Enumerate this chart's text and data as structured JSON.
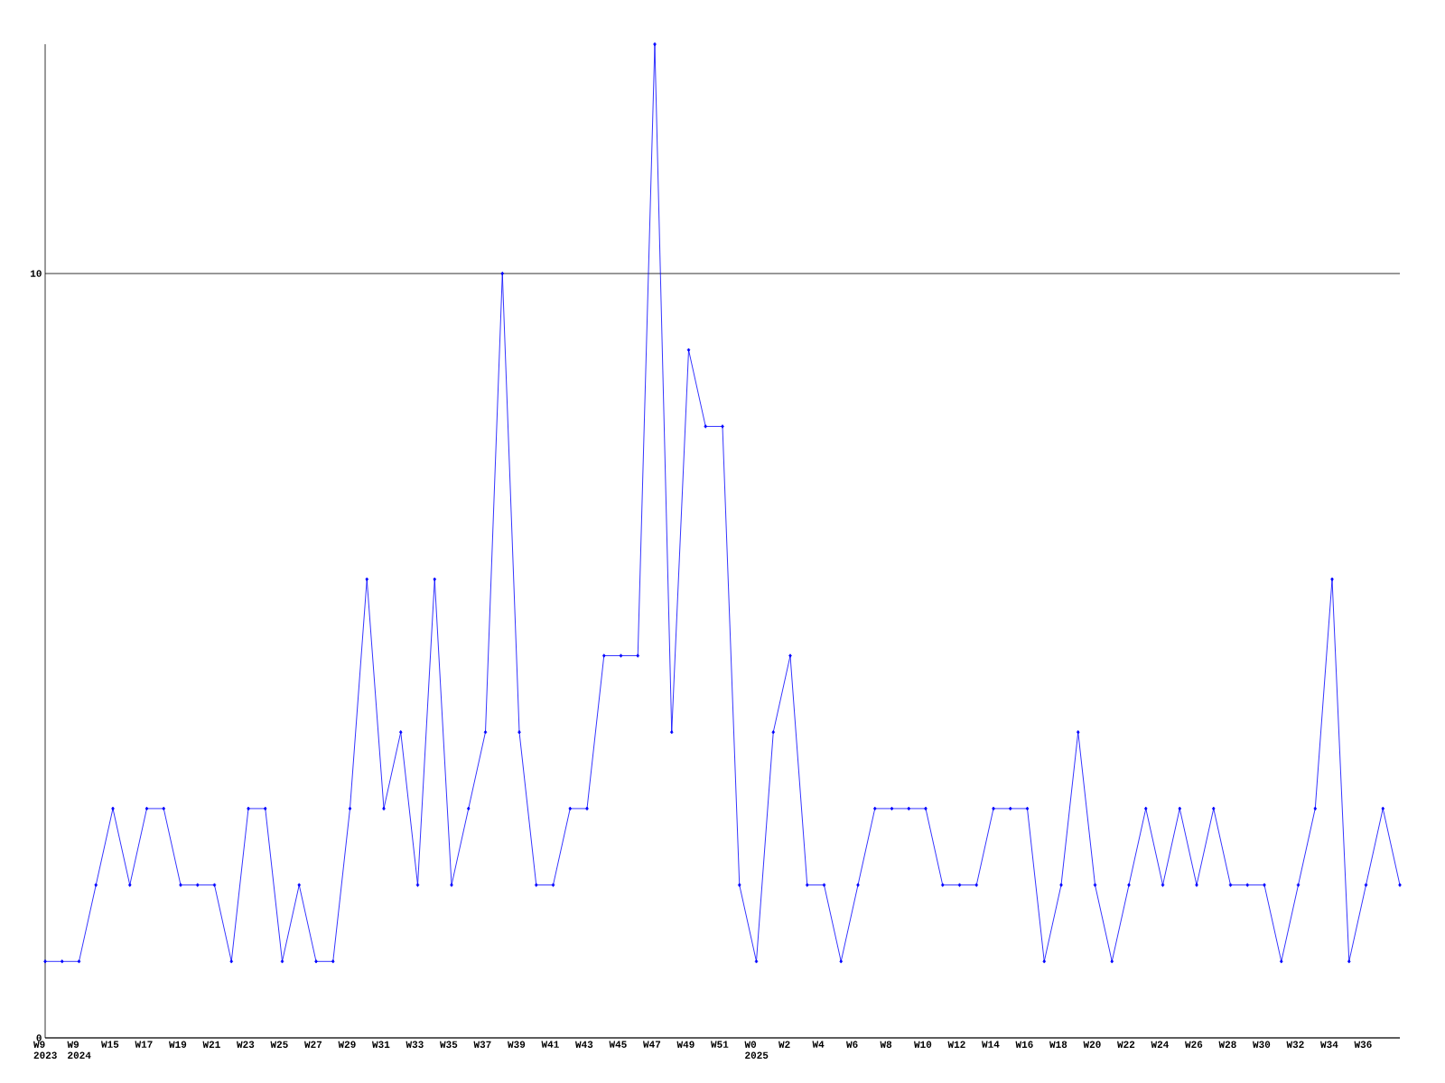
{
  "chart_data": {
    "type": "line",
    "categories": [
      "W9 2023",
      null,
      "W9 2024",
      null,
      "W15",
      null,
      "W17",
      null,
      "W19",
      null,
      "W21",
      null,
      "W23",
      null,
      "W25",
      null,
      "W27",
      null,
      "W29",
      null,
      "W31",
      null,
      "W33",
      null,
      "W35",
      null,
      "W37",
      null,
      "W39",
      null,
      "W41",
      null,
      "W43",
      null,
      "W45",
      null,
      "W47",
      null,
      "W49",
      null,
      "W51",
      null,
      "W0 2025",
      null,
      "W2",
      null,
      "W4",
      null,
      "W6",
      null,
      "W8",
      null,
      "W10",
      null,
      "W12",
      null,
      "W14",
      null,
      "W16",
      null,
      "W18",
      null,
      "W20",
      null,
      "W22",
      null,
      "W24",
      null,
      "W26",
      null,
      "W28",
      null,
      "W30",
      null,
      "W32",
      null,
      "W34",
      null,
      "W36",
      null,
      null
    ],
    "values": [
      1,
      1,
      1,
      2,
      3,
      2,
      3,
      3,
      2,
      2,
      2,
      1,
      3,
      3,
      1,
      2,
      1,
      1,
      3,
      6,
      3,
      4,
      2,
      6,
      2,
      3,
      4,
      10,
      4,
      2,
      2,
      3,
      3,
      5,
      5,
      5,
      13,
      4,
      9,
      8,
      8,
      2,
      1,
      4,
      5,
      2,
      2,
      1,
      2,
      3,
      3,
      3,
      3,
      2,
      2,
      2,
      3,
      3,
      3,
      1,
      2,
      4,
      2,
      1,
      2,
      3,
      2,
      3,
      2,
      3,
      2,
      2,
      2,
      1,
      2,
      3,
      6,
      1,
      2,
      3,
      2
    ],
    "color": "#0000ff",
    "marker": "diamond",
    "line_style": "solid",
    "ylim": [
      0,
      13
    ],
    "yticks": [
      0,
      10
    ],
    "grid": "y"
  }
}
